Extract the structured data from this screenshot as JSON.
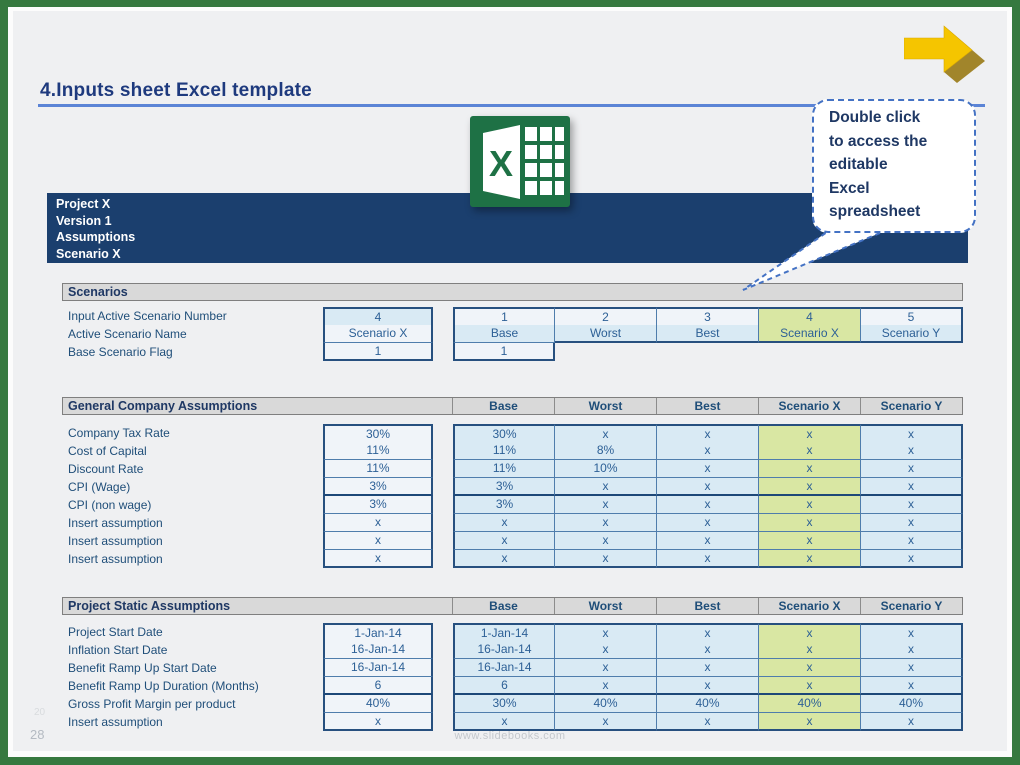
{
  "page": {
    "title": "4.Inputs sheet Excel template",
    "page_number": "28",
    "watermark": "20",
    "footer_url": "www.slidebooks.com"
  },
  "callout": {
    "text": "Double click\nto access the\neditable\nExcel\nspreadsheet"
  },
  "workbook": {
    "header_lines": [
      "Project X",
      "Version 1",
      "Assumptions",
      "Scenario X"
    ]
  },
  "excel_icon": {
    "letter": "X"
  },
  "columns": [
    "Base",
    "Worst",
    "Best",
    "Scenario X",
    "Scenario Y"
  ],
  "highlight_column": "Scenario X",
  "highlight_column_index": 3,
  "tables": {
    "scenarios": {
      "title": "Scenarios",
      "rows": [
        {
          "label": "Input Active Scenario Number",
          "input": "4",
          "cells": [
            "1",
            "2",
            "3",
            "4",
            "5"
          ]
        },
        {
          "label": "Active Scenario Name",
          "input": "Scenario X",
          "cells": [
            "Base",
            "Worst",
            "Best",
            "Scenario X",
            "Scenario Y"
          ]
        },
        {
          "label": "Base Scenario Flag",
          "input": "1",
          "cells": [
            "1",
            "",
            "",
            "",
            ""
          ]
        }
      ]
    },
    "general": {
      "title": "General Company Assumptions",
      "thick_after_row": 3,
      "rows": [
        {
          "label": "Company Tax Rate",
          "input": "30%",
          "cells": [
            "30%",
            "x",
            "x",
            "x",
            "x"
          ]
        },
        {
          "label": "Cost of Capital",
          "input": "11%",
          "cells": [
            "11%",
            "8%",
            "x",
            "x",
            "x"
          ]
        },
        {
          "label": "Discount Rate",
          "input": "11%",
          "cells": [
            "11%",
            "10%",
            "x",
            "x",
            "x"
          ]
        },
        {
          "label": "CPI (Wage)",
          "input": "3%",
          "cells": [
            "3%",
            "x",
            "x",
            "x",
            "x"
          ]
        },
        {
          "label": "CPI (non wage)",
          "input": "3%",
          "cells": [
            "3%",
            "x",
            "x",
            "x",
            "x"
          ]
        },
        {
          "label": "Insert assumption",
          "input": "x",
          "cells": [
            "x",
            "x",
            "x",
            "x",
            "x"
          ]
        },
        {
          "label": "Insert assumption",
          "input": "x",
          "cells": [
            "x",
            "x",
            "x",
            "x",
            "x"
          ]
        },
        {
          "label": "Insert assumption",
          "input": "x",
          "cells": [
            "x",
            "x",
            "x",
            "x",
            "x"
          ]
        }
      ]
    },
    "static": {
      "title": "Project Static Assumptions",
      "thick_after_row": 3,
      "rows": [
        {
          "label": "Project Start Date",
          "input": "1-Jan-14",
          "cells": [
            "1-Jan-14",
            "x",
            "x",
            "x",
            "x"
          ]
        },
        {
          "label": "Inflation Start Date",
          "input": "16-Jan-14",
          "cells": [
            "16-Jan-14",
            "x",
            "x",
            "x",
            "x"
          ]
        },
        {
          "label": "Benefit Ramp Up Start Date",
          "input": "16-Jan-14",
          "cells": [
            "16-Jan-14",
            "x",
            "x",
            "x",
            "x"
          ]
        },
        {
          "label": "Benefit Ramp Up Duration (Months)",
          "input": "6",
          "cells": [
            "6",
            "x",
            "x",
            "x",
            "x"
          ]
        },
        {
          "label": "Gross Profit Margin per product",
          "input": "40%",
          "cells": [
            "30%",
            "40%",
            "40%",
            "40%",
            "40%"
          ]
        },
        {
          "label": "Insert assumption",
          "input": "x",
          "cells": [
            "x",
            "x",
            "x",
            "x",
            "x"
          ]
        }
      ]
    }
  },
  "colors": {
    "frame_green": "#36793f",
    "slide_bg": "#eff0f2",
    "navy_bar": "#1b3f6e",
    "title_blue": "#1e3a7e",
    "underline_blue": "#5b84d6",
    "cell_blue": "#d9eaf4",
    "cell_light": "#f0f4f9",
    "highlight_green": "#d9e7a3",
    "section_bar_gray": "#d9d9d9",
    "callout_border": "#4472c4",
    "excel_green": "#1e7145",
    "arrow_yellow": "#f5c500"
  }
}
